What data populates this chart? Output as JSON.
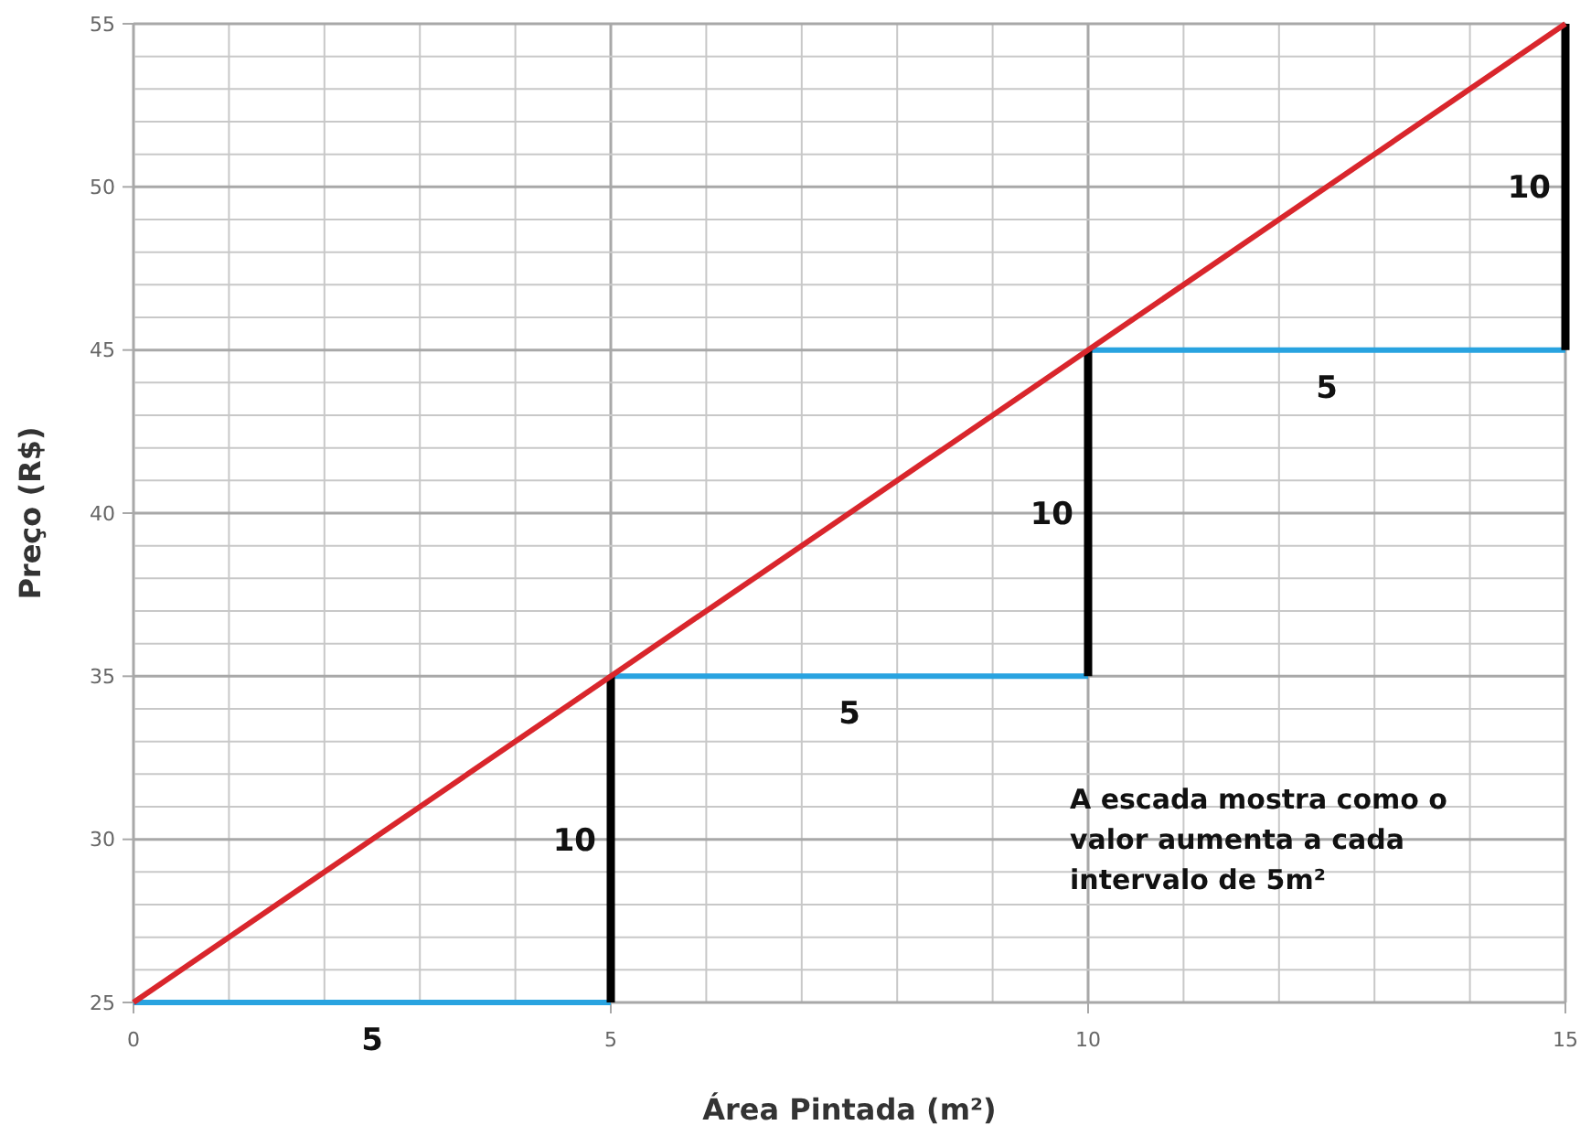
{
  "chart_data": {
    "type": "line",
    "xlabel": "Área Pintada (m²)",
    "ylabel": "Preço (R$)",
    "xlim": [
      0,
      15
    ],
    "ylim": [
      25,
      55
    ],
    "xticks": [
      0,
      {
        "value": 1,
        "label": null
      },
      {
        "value": 2,
        "label": null
      },
      {
        "value": 3,
        "label": null
      },
      {
        "value": 4,
        "label": null
      },
      5,
      {
        "value": 6,
        "label": null
      },
      {
        "value": 7,
        "label": null
      },
      {
        "value": 8,
        "label": null
      },
      {
        "value": 9,
        "label": null
      },
      10,
      {
        "value": 11,
        "label": null
      },
      {
        "value": 12,
        "label": null
      },
      {
        "value": 13,
        "label": null
      },
      {
        "value": 14,
        "label": null
      },
      15
    ],
    "yticks": [
      25,
      {
        "value": 26,
        "label": null
      },
      {
        "value": 27,
        "label": null
      },
      {
        "value": 28,
        "label": null
      },
      {
        "value": 29,
        "label": null
      },
      30,
      {
        "value": 31,
        "label": null
      },
      {
        "value": 32,
        "label": null
      },
      {
        "value": 33,
        "label": null
      },
      {
        "value": 34,
        "label": null
      },
      35,
      {
        "value": 36,
        "label": null
      },
      {
        "value": 37,
        "label": null
      },
      {
        "value": 38,
        "label": null
      },
      {
        "value": 39,
        "label": null
      },
      40,
      {
        "value": 41,
        "label": null
      },
      {
        "value": 42,
        "label": null
      },
      {
        "value": 43,
        "label": null
      },
      {
        "value": 44,
        "label": null
      },
      45,
      {
        "value": 46,
        "label": null
      },
      {
        "value": 47,
        "label": null
      },
      {
        "value": 48,
        "label": null
      },
      {
        "value": 49,
        "label": null
      },
      50,
      {
        "value": 51,
        "label": null
      },
      {
        "value": 52,
        "label": null
      },
      {
        "value": 53,
        "label": null
      },
      {
        "value": 54,
        "label": null
      },
      55
    ],
    "grid": true,
    "marker": "none",
    "line_style": "solid",
    "series": [
      {
        "color": "#29a3e0",
        "x": [
          0,
          5
        ],
        "values": [
          25,
          25
        ]
      },
      {
        "color": "#29a3e0",
        "x": [
          5,
          10
        ],
        "values": [
          35,
          35
        ]
      },
      {
        "color": "#29a3e0",
        "x": [
          10,
          15
        ],
        "values": [
          45,
          45
        ]
      },
      {
        "color": "#000000",
        "x": [
          5,
          5
        ],
        "values": [
          25,
          35
        ]
      },
      {
        "color": "#000000",
        "x": [
          10,
          10
        ],
        "values": [
          35,
          45
        ]
      },
      {
        "color": "#000000",
        "x": [
          15,
          15
        ],
        "values": [
          45,
          55
        ]
      },
      {
        "color": "#d9262c",
        "x": [
          0,
          15
        ],
        "values": [
          25,
          55
        ]
      }
    ],
    "annotations": [
      {
        "text": "5",
        "x": 2.5,
        "y": 25
      },
      {
        "text": "10",
        "x": 5,
        "y": 30
      },
      {
        "text": "5",
        "x": 7.5,
        "y": 35
      },
      {
        "text": "10",
        "x": 10,
        "y": 40
      },
      {
        "text": "5",
        "x": 12.5,
        "y": 45
      },
      {
        "text": "10",
        "x": 15,
        "y": 50
      },
      "A escada mostra como o valor aumenta a cada intervalo de 5m²"
    ]
  }
}
